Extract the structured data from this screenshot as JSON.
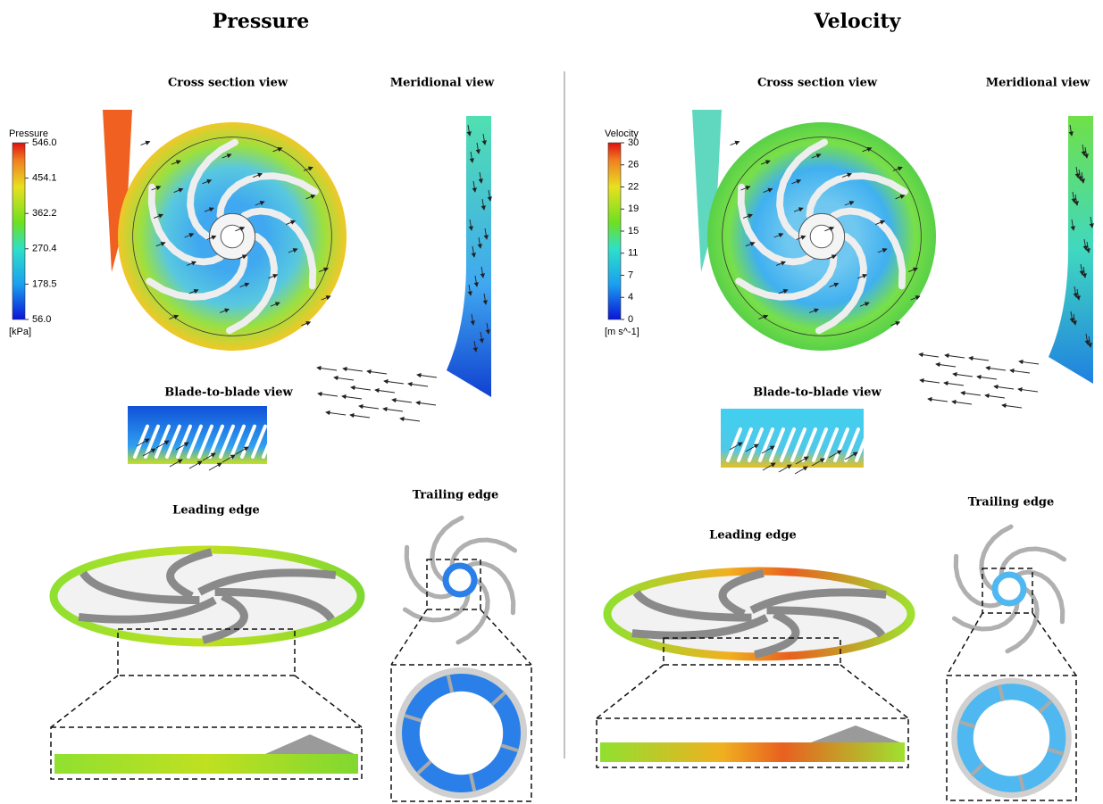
{
  "panels": [
    {
      "title": "Pressure",
      "views": {
        "cross_section": "Cross section view",
        "meridional": "Meridional view",
        "blade_to_blade": "Blade-to-blade view",
        "leading_edge": "Leading edge",
        "trailing_edge": "Trailing edge"
      },
      "legend": {
        "title": "Pressure",
        "ticks": [
          "546.0",
          "454.1",
          "362.2",
          "270.4",
          "178.5",
          "56.0"
        ],
        "unit": "[kPa]"
      }
    },
    {
      "title": "Velocity",
      "views": {
        "cross_section": "Cross section view",
        "meridional": "Meridional view",
        "blade_to_blade": "Blade-to-blade view",
        "leading_edge": "Leading edge",
        "trailing_edge": "Trailing edge"
      },
      "legend": {
        "title": "Velocity",
        "ticks": [
          "30",
          "26",
          "22",
          "19",
          "15",
          "11",
          "7",
          "4",
          "0"
        ],
        "unit": "[m s^-1]"
      }
    }
  ]
}
